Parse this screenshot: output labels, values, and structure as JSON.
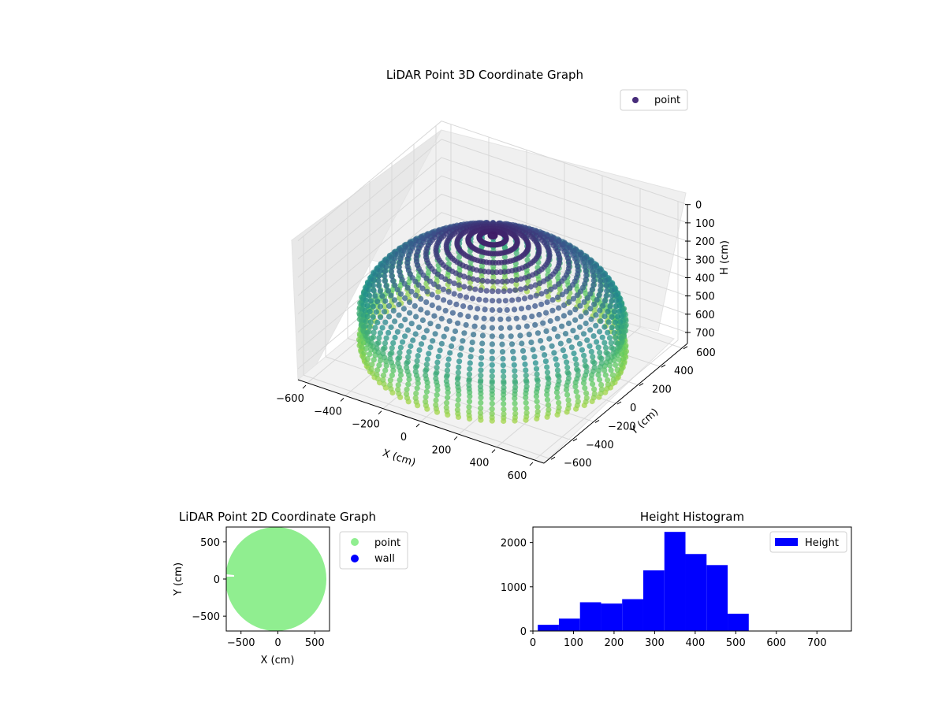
{
  "chart_data": [
    {
      "type": "scatter3d",
      "title": "LiDAR Point 3D Coordinate Graph",
      "xlabel": "X (cm)",
      "ylabel": "Y (cm)",
      "zlabel": "H (cm)",
      "xlim": [
        -650,
        650
      ],
      "ylim": [
        -650,
        650
      ],
      "zlim": [
        0,
        760
      ],
      "z_inverted": true,
      "xticks": [
        -600,
        -400,
        -200,
        0,
        200,
        400,
        600
      ],
      "yticks": [
        -600,
        -400,
        -200,
        0,
        200,
        400,
        600
      ],
      "zticks": [
        0,
        100,
        200,
        300,
        400,
        500,
        600,
        700
      ],
      "colormap": "viridis",
      "legend": {
        "position": "top-right",
        "entries": [
          "point"
        ]
      },
      "series": [
        {
          "name": "point",
          "color": "#472c7a",
          "description_shape": "dome of scan rings, radius ~600 cm, heights 0-760 cm"
        }
      ],
      "grid": true
    },
    {
      "type": "scatter",
      "title": "LiDAR Point 2D Coordinate Graph",
      "xlabel": "X (cm)",
      "ylabel": "Y (cm)",
      "xlim": [
        -700,
        700
      ],
      "ylim": [
        -700,
        700
      ],
      "xticks": [
        -500,
        0,
        500
      ],
      "yticks": [
        -500,
        0,
        500
      ],
      "legend": {
        "position": "outside-right",
        "entries": [
          "point",
          "wall"
        ]
      },
      "series": [
        {
          "name": "point",
          "color": "#90ee90",
          "shape": "filled disc, radius ~640 cm"
        },
        {
          "name": "wall",
          "color": "#0000ff"
        }
      ]
    },
    {
      "type": "bar",
      "title": "Height Histogram",
      "legend": {
        "position": "top-right",
        "entries": [
          "Height"
        ]
      },
      "xlim": [
        0,
        785
      ],
      "ylim": [
        0,
        2350
      ],
      "xticks": [
        0,
        100,
        200,
        300,
        400,
        500,
        600,
        700
      ],
      "yticks": [
        0,
        1000,
        2000
      ],
      "series": [
        {
          "name": "Height",
          "color": "#0000ff",
          "bin_edges": [
            12,
            64,
            116,
            168,
            220,
            272,
            324,
            376,
            428,
            480,
            532,
            584,
            636,
            688,
            740
          ],
          "values": [
            140,
            280,
            650,
            620,
            720,
            1370,
            2240,
            1740,
            1490,
            390,
            0,
            0,
            0,
            0
          ]
        }
      ]
    }
  ]
}
